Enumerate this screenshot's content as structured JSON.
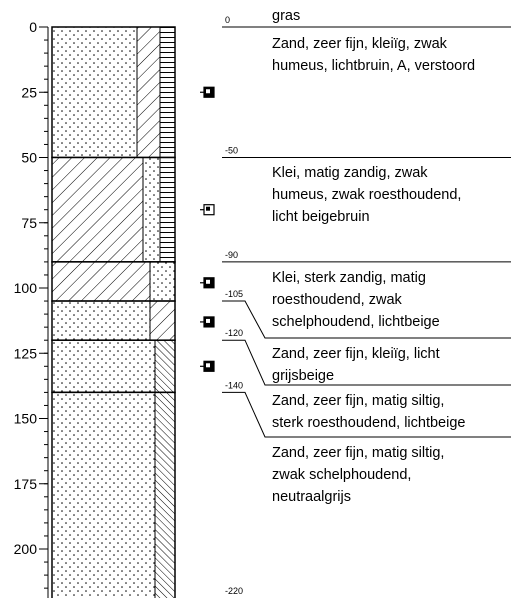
{
  "depth_axis": {
    "ticks": [
      0,
      25,
      50,
      75,
      100,
      125,
      150,
      175,
      200
    ]
  },
  "surface_label": "gras",
  "layers": [
    {
      "top": 0,
      "bottom": 50,
      "depth_label": "0",
      "description": [
        "Zand, zeer fijn, kleiïg, zwak",
        "humeus, lichtbruin, A, verstoord"
      ]
    },
    {
      "top": 50,
      "bottom": 90,
      "depth_label": "-50",
      "description": [
        "Klei, matig zandig, zwak",
        "humeus, zwak roesthoudend,",
        "licht beigebruin"
      ]
    },
    {
      "top": 90,
      "bottom": 105,
      "depth_label": "-90",
      "description": [
        "Klei, sterk zandig, matig",
        "roesthoudend, zwak",
        "schelphoudend, lichtbeige"
      ]
    },
    {
      "top": 105,
      "bottom": 120,
      "depth_label": "-105",
      "description": [
        "Zand, zeer fijn, kleiïg, licht",
        "grijsbeige"
      ]
    },
    {
      "top": 120,
      "bottom": 140,
      "depth_label": "-120",
      "description": [
        "Zand, zeer fijn, matig siltig,",
        "sterk roesthoudend, lichtbeige"
      ]
    },
    {
      "top": 140,
      "bottom": 220,
      "depth_label": "-140",
      "description": [
        "Zand, zeer fijn, matig siltig,",
        "zwak schelphoudend,",
        "neutraalgrijs"
      ]
    }
  ],
  "bottom_label": "-220",
  "samples": [
    25,
    70,
    98,
    113,
    130
  ]
}
